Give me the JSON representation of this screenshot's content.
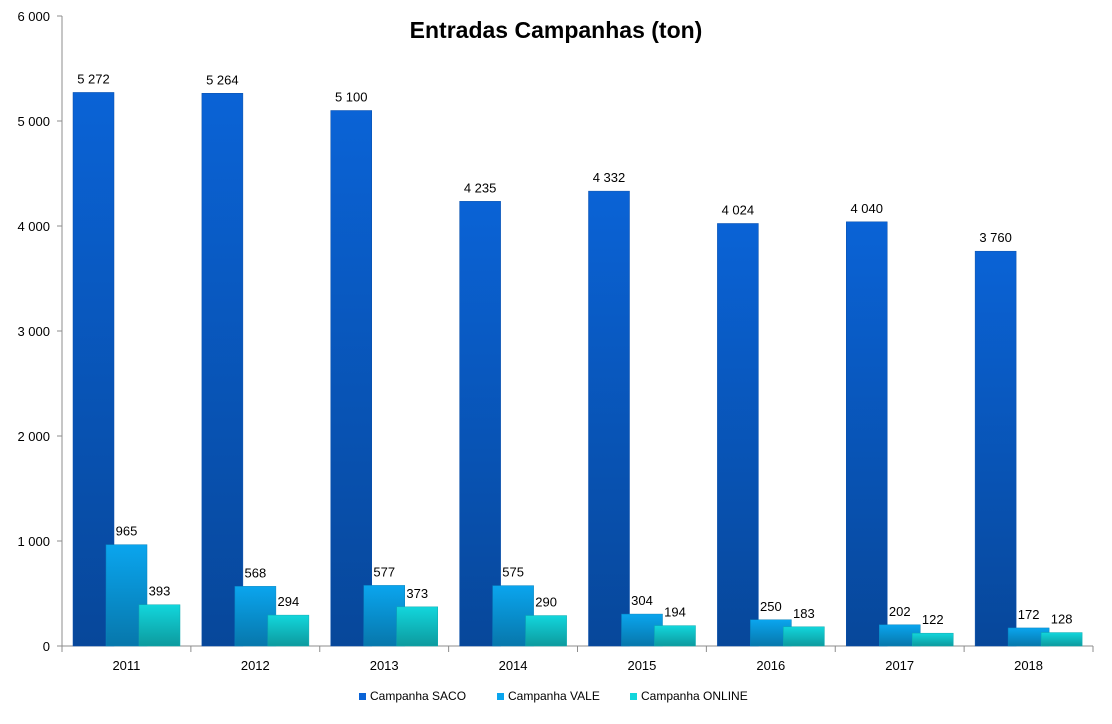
{
  "chart_data": {
    "type": "bar",
    "title": "Entradas Campanhas (ton)",
    "xlabel": "",
    "ylabel": "",
    "categories": [
      "2011",
      "2012",
      "2013",
      "2014",
      "2015",
      "2016",
      "2017",
      "2018"
    ],
    "ylim": [
      0,
      6000
    ],
    "yticks": [
      0,
      1000,
      2000,
      3000,
      4000,
      5000,
      6000
    ],
    "ytick_labels": [
      "0",
      "1 000",
      "2 000",
      "3 000",
      "4 000",
      "5 000",
      "6 000"
    ],
    "grid": false,
    "legend_position": "bottom",
    "series": [
      {
        "name": "Campanha SACO",
        "color": "#0a63d6",
        "values": [
          5272,
          5264,
          5100,
          4235,
          4332,
          4024,
          4040,
          3760
        ],
        "labels": [
          "5 272",
          "5 264",
          "5 100",
          "4 235",
          "4 332",
          "4 024",
          "4 040",
          "3 760"
        ]
      },
      {
        "name": "Campanha VALE",
        "color": "#0aa5ee",
        "values": [
          965,
          568,
          577,
          575,
          304,
          250,
          202,
          172
        ],
        "labels": [
          "965",
          "568",
          "577",
          "575",
          "304",
          "250",
          "202",
          "172"
        ]
      },
      {
        "name": "Campanha ONLINE",
        "color": "#12d6dc",
        "values": [
          393,
          294,
          373,
          290,
          194,
          183,
          122,
          128
        ],
        "labels": [
          "393",
          "294",
          "373",
          "290",
          "194",
          "183",
          "122",
          "128"
        ]
      }
    ]
  }
}
